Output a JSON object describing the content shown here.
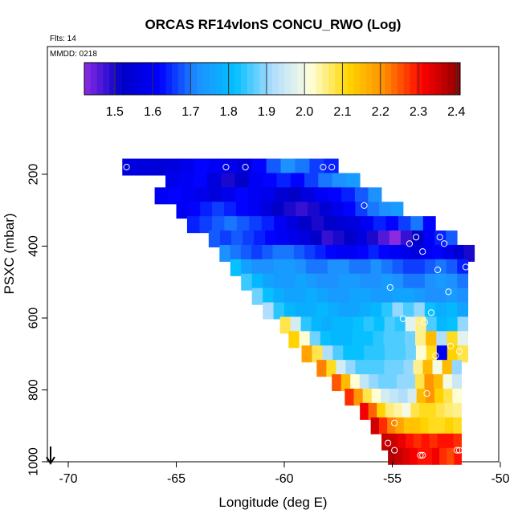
{
  "chart_data": {
    "type": "heatmap",
    "title": "ORCAS RF14vlonS CONCU_RWO (Log)",
    "annotations": [
      "Flts: 14",
      "MMDD: 0218"
    ],
    "xlabel": "Longitude (deg E)",
    "ylabel": "PSXC (mbar)",
    "xlim": [
      -71,
      -50
    ],
    "ylim": [
      1000,
      100
    ],
    "x_ticks": [
      -70,
      -65,
      -60,
      -55,
      -50
    ],
    "y_ticks": [
      200,
      400,
      600,
      800,
      1000
    ],
    "colorbar": {
      "range": [
        1.42,
        2.41
      ],
      "ticks": [
        1.5,
        1.6,
        1.7,
        1.8,
        1.9,
        2.0,
        2.1,
        2.2,
        2.3,
        2.4
      ],
      "tick_labels": [
        "1.5",
        "1.6",
        "1.7",
        "1.8",
        "1.9",
        "2.0",
        "2.1",
        "2.2",
        "2.3",
        "2.4"
      ],
      "colors": [
        "#8a2be2",
        "#0000c8",
        "#0000ff",
        "#1e90ff",
        "#00bfff",
        "#aedcff",
        "#ffffe0",
        "#ffd700",
        "#ff8c00",
        "#ff0000",
        "#8b0000"
      ]
    },
    "bands": [
      {
        "p": 180,
        "x0": -67.5,
        "x1": -57.5,
        "values": [
          1.56,
          1.56,
          1.55,
          1.56,
          1.58,
          1.62,
          1.6,
          1.58,
          1.56,
          1.62,
          1.68,
          1.72,
          1.7,
          1.66,
          1.64
        ]
      },
      {
        "p": 220,
        "x0": -65.5,
        "x1": -56.5,
        "values": [
          1.58,
          1.6,
          1.62,
          1.56,
          1.5,
          1.52,
          1.6,
          1.62,
          1.64,
          1.62,
          1.66,
          1.7,
          1.72,
          1.74
        ]
      },
      {
        "p": 260,
        "x0": -66.0,
        "x1": -55.5,
        "values": [
          1.6,
          1.62,
          1.6,
          1.58,
          1.56,
          1.58,
          1.62,
          1.6,
          1.58,
          1.54,
          1.52,
          1.56,
          1.6,
          1.62,
          1.64,
          1.68,
          1.72
        ]
      },
      {
        "p": 300,
        "x0": -65.0,
        "x1": -54.5,
        "values": [
          1.6,
          1.62,
          1.64,
          1.66,
          1.64,
          1.62,
          1.6,
          1.56,
          1.52,
          1.5,
          1.48,
          1.5,
          1.54,
          1.58,
          1.62,
          1.66,
          1.7,
          1.72,
          1.74
        ]
      },
      {
        "p": 340,
        "x0": -64.5,
        "x1": -53.0,
        "values": [
          1.64,
          1.66,
          1.68,
          1.7,
          1.68,
          1.66,
          1.64,
          1.6,
          1.56,
          1.52,
          1.5,
          1.52,
          1.54,
          1.56,
          1.6,
          1.64,
          1.62,
          1.66,
          1.7,
          1.62
        ]
      },
      {
        "p": 380,
        "x0": -63.5,
        "x1": -52.0,
        "values": [
          1.68,
          1.66,
          1.68,
          1.66,
          1.64,
          1.62,
          1.6,
          1.58,
          1.56,
          1.52,
          1.48,
          1.5,
          1.52,
          1.56,
          1.5,
          1.46,
          1.42,
          1.48,
          1.52,
          1.6,
          1.64,
          1.68
        ]
      },
      {
        "p": 420,
        "x0": -63.0,
        "x1": -51.2,
        "values": [
          1.72,
          1.7,
          1.68,
          1.66,
          1.68,
          1.7,
          1.7,
          1.68,
          1.66,
          1.64,
          1.62,
          1.6,
          1.6,
          1.62,
          1.64,
          1.62,
          1.6,
          1.58,
          1.56,
          1.6,
          1.62,
          1.58,
          1.54,
          1.5
        ]
      },
      {
        "p": 460,
        "x0": -62.5,
        "x1": -51.5,
        "values": [
          1.82,
          1.75,
          1.72,
          1.72,
          1.74,
          1.74,
          1.72,
          1.7,
          1.7,
          1.72,
          1.72,
          1.7,
          1.7,
          1.72,
          1.7,
          1.68,
          1.66,
          1.66,
          1.68,
          1.7,
          1.68,
          1.64
        ]
      },
      {
        "p": 500,
        "x0": -62.0,
        "x1": -51.5,
        "values": [
          1.85,
          1.8,
          1.76,
          1.74,
          1.74,
          1.76,
          1.74,
          1.72,
          1.72,
          1.74,
          1.74,
          1.72,
          1.72,
          1.74,
          1.72,
          1.7,
          1.7,
          1.72,
          1.74,
          1.72,
          1.7
        ]
      },
      {
        "p": 540,
        "x0": -61.5,
        "x1": -51.5,
        "values": [
          1.88,
          1.82,
          1.78,
          1.76,
          1.76,
          1.78,
          1.76,
          1.74,
          1.74,
          1.76,
          1.76,
          1.74,
          1.74,
          1.76,
          1.76,
          1.74,
          1.72,
          1.72,
          1.74,
          1.72
        ]
      },
      {
        "p": 580,
        "x0": -61.0,
        "x1": -51.5,
        "values": [
          1.92,
          1.84,
          1.8,
          1.78,
          1.78,
          1.8,
          1.78,
          1.76,
          1.76,
          1.78,
          1.8,
          1.84,
          1.9,
          1.86,
          1.9,
          1.82,
          1.78,
          1.8,
          1.76
        ]
      },
      {
        "p": 620,
        "x0": -60.2,
        "x1": -51.5,
        "values": [
          2.08,
          1.96,
          1.84,
          1.8,
          1.78,
          1.8,
          1.8,
          1.82,
          1.84,
          1.82,
          1.86,
          1.84,
          1.98,
          2.05,
          1.86,
          1.8,
          1.82,
          1.9
        ]
      },
      {
        "p": 660,
        "x0": -59.8,
        "x1": -51.5,
        "values": [
          2.12,
          2.02,
          1.88,
          1.82,
          1.8,
          1.8,
          1.82,
          1.82,
          1.84,
          1.86,
          1.86,
          1.88,
          2.05,
          2.15,
          1.92,
          2.1,
          1.98
        ]
      },
      {
        "p": 700,
        "x0": -59.2,
        "x1": -51.5,
        "values": [
          2.18,
          2.08,
          1.92,
          1.86,
          1.82,
          1.82,
          1.84,
          1.84,
          1.86,
          1.86,
          1.88,
          2.02,
          2.1,
          1.6,
          2.12,
          2.08
        ]
      },
      {
        "p": 740,
        "x0": -58.5,
        "x1": -51.8,
        "values": [
          2.22,
          2.1,
          1.96,
          1.9,
          1.86,
          1.86,
          1.86,
          1.88,
          1.88,
          1.9,
          2.05,
          2.15,
          2.0,
          2.15,
          1.9
        ]
      },
      {
        "p": 780,
        "x0": -57.8,
        "x1": -51.8,
        "values": [
          2.25,
          2.15,
          2.02,
          1.94,
          1.9,
          1.88,
          1.88,
          1.9,
          1.9,
          2.08,
          2.2,
          2.15,
          2.0,
          1.95
        ]
      },
      {
        "p": 820,
        "x0": -57.2,
        "x1": -51.8,
        "values": [
          2.28,
          2.2,
          2.08,
          2.02,
          1.96,
          1.94,
          1.92,
          1.96,
          2.15,
          2.2,
          2.12,
          2.08,
          2.02
        ]
      },
      {
        "p": 860,
        "x0": -56.5,
        "x1": -51.8,
        "values": [
          2.32,
          2.24,
          2.12,
          2.06,
          2.04,
          2.0,
          2.08,
          2.1,
          2.1,
          2.08,
          2.06,
          2.05
        ]
      },
      {
        "p": 900,
        "x0": -56.0,
        "x1": -51.8,
        "values": [
          2.35,
          2.28,
          2.22,
          2.18,
          2.14,
          2.14,
          2.12,
          2.1,
          2.1,
          2.12,
          2.1
        ]
      },
      {
        "p": 945,
        "x0": -55.5,
        "x1": -51.8,
        "values": [
          2.36,
          2.35,
          2.33,
          2.3,
          2.28,
          2.3,
          2.28,
          2.3,
          2.3,
          2.28
        ]
      },
      {
        "p": 985,
        "x0": -55.2,
        "x1": -51.8,
        "values": [
          2.38,
          2.36,
          2.34,
          2.32,
          2.3,
          2.3,
          2.32,
          2.28,
          2.26,
          2.3
        ]
      }
    ],
    "markers": [
      [
        -67.3,
        180
      ],
      [
        -62.7,
        180
      ],
      [
        -61.8,
        180
      ],
      [
        -58.2,
        180
      ],
      [
        -57.8,
        180
      ],
      [
        -56.3,
        287
      ],
      [
        -53.9,
        375
      ],
      [
        -52.8,
        375
      ],
      [
        -51.5,
        375
      ],
      [
        -54.2,
        393
      ],
      [
        -52.6,
        393
      ],
      [
        -53.6,
        415
      ],
      [
        -51.6,
        458
      ],
      [
        -52.9,
        466
      ],
      [
        -52.4,
        527
      ],
      [
        -55.1,
        515
      ],
      [
        -53.2,
        585
      ],
      [
        -54.5,
        602
      ],
      [
        -53.5,
        612
      ],
      [
        -52.3,
        678
      ],
      [
        -51.9,
        693
      ],
      [
        -53.0,
        705
      ],
      [
        -54.9,
        892
      ],
      [
        -53.4,
        810
      ],
      [
        -55.2,
        948
      ],
      [
        -54.9,
        968
      ],
      [
        -52.0,
        968
      ],
      [
        -51.9,
        968
      ],
      [
        -53.7,
        982
      ],
      [
        -53.6,
        982
      ]
    ]
  }
}
